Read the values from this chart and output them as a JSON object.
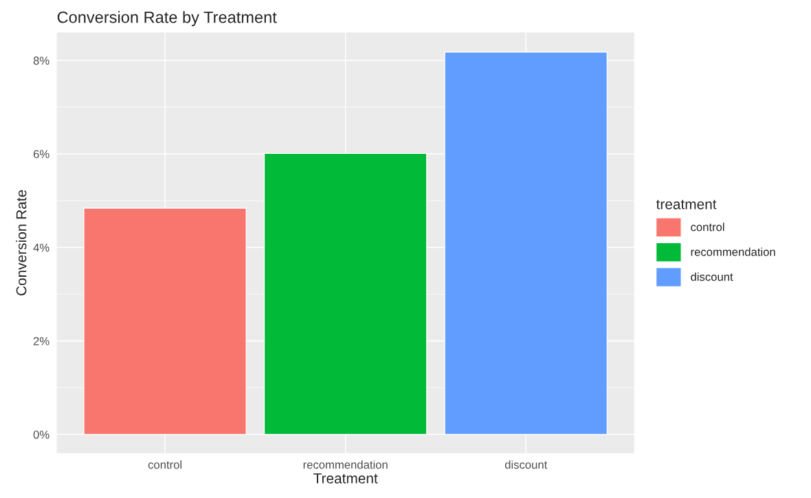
{
  "chart_data": {
    "type": "bar",
    "title": "Conversion Rate by Treatment",
    "xlabel": "Treatment",
    "ylabel": "Conversion Rate",
    "legend_title": "treatment",
    "categories": [
      "control",
      "recommendation",
      "discount"
    ],
    "series": [
      {
        "name": "control",
        "color": "#f8766d",
        "values": [
          4.84,
          null,
          null
        ]
      },
      {
        "name": "recommendation",
        "color": "#00ba38",
        "values": [
          null,
          6.01,
          null
        ]
      },
      {
        "name": "discount",
        "color": "#619cff",
        "values": [
          null,
          null,
          8.18
        ]
      }
    ],
    "ylim": [
      -0.4,
      8.6
    ],
    "yticks": [
      {
        "value": 0,
        "label": "0%"
      },
      {
        "value": 2,
        "label": "2%"
      },
      {
        "value": 4,
        "label": "4%"
      },
      {
        "value": 6,
        "label": "6%"
      },
      {
        "value": 8,
        "label": "8%"
      }
    ],
    "grid": true,
    "legend": "right"
  }
}
